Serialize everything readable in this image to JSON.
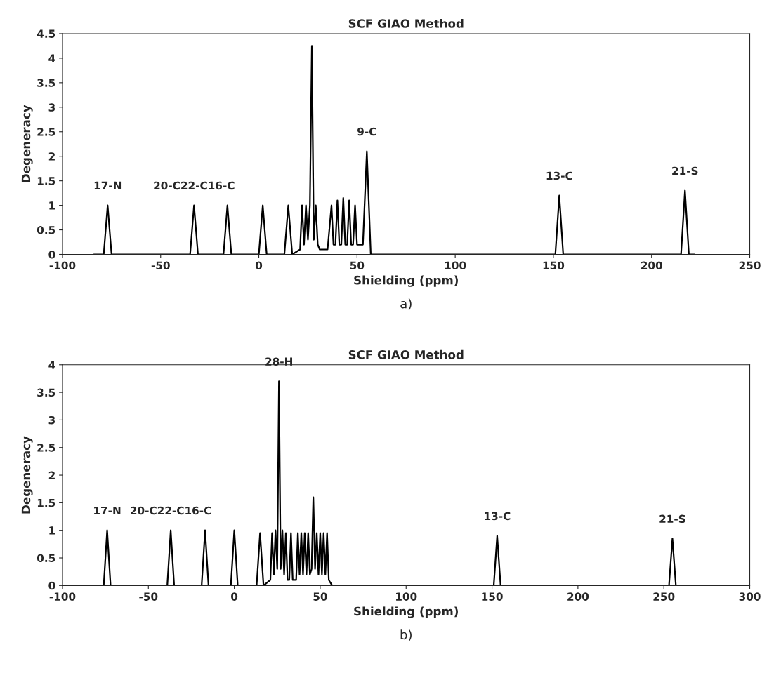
{
  "chart_data": [
    {
      "type": "line",
      "title": "SCF GIAO Method",
      "xlabel": "Shielding (ppm)",
      "ylabel": "Degeneracy",
      "xlim": [
        -100,
        250
      ],
      "xticks": [
        -100,
        -50,
        0,
        50,
        100,
        150,
        200,
        250
      ],
      "ylim": [
        0,
        4.5
      ],
      "yticks": [
        0,
        0.5,
        1,
        1.5,
        2,
        2.5,
        3,
        3.5,
        4,
        4.5
      ],
      "grid": false,
      "series": [
        {
          "color": "#000000",
          "x": [
            -84,
            -79,
            -77,
            -75,
            -35,
            -33,
            -31,
            -18,
            -16,
            -14,
            0,
            2,
            4,
            13,
            15,
            17,
            21,
            22,
            23,
            24,
            25,
            26,
            27,
            28,
            29,
            30,
            31,
            35,
            37,
            38,
            39,
            40,
            41,
            42,
            43,
            44,
            45,
            46,
            47,
            48,
            49,
            50,
            53,
            55,
            57,
            151,
            153,
            155,
            215,
            217,
            219,
            222
          ],
          "values": [
            0,
            0,
            1.0,
            0,
            0,
            1.0,
            0,
            0,
            1.0,
            0,
            0,
            1.0,
            0,
            0,
            1.0,
            0,
            0.1,
            1.0,
            0.2,
            1.0,
            0.3,
            1.0,
            4.25,
            0.3,
            1.0,
            0.2,
            0.1,
            0.1,
            1.0,
            0.2,
            0.2,
            1.1,
            0.2,
            0.2,
            1.15,
            0.2,
            0.2,
            1.1,
            0.2,
            0.2,
            1.0,
            0.2,
            0.2,
            2.1,
            0,
            0,
            1.2,
            0,
            0,
            1.3,
            0,
            0
          ]
        }
      ],
      "annotations": [
        {
          "text": "17-N",
          "x": -77,
          "y": 1.0
        },
        {
          "text": "20-C22-C16-C",
          "x": -33,
          "y": 1.0
        },
        {
          "text": "9-C",
          "x": 55,
          "y": 2.1
        },
        {
          "text": "13-C",
          "x": 153,
          "y": 1.2
        },
        {
          "text": "21-S",
          "x": 217,
          "y": 1.3
        },
        "a)"
      ]
    },
    {
      "type": "line",
      "title": "SCF GIAO Method",
      "xlabel": "Shielding (ppm)",
      "ylabel": "Degeneracy",
      "xlim": [
        -100,
        300
      ],
      "xticks": [
        -100,
        -50,
        0,
        50,
        100,
        150,
        200,
        250,
        300
      ],
      "ylim": [
        0,
        4
      ],
      "yticks": [
        0,
        0.5,
        1,
        1.5,
        2,
        2.5,
        3,
        3.5,
        4
      ],
      "grid": false,
      "series": [
        {
          "color": "#000000",
          "x": [
            -82,
            -76,
            -74,
            -72,
            -39,
            -37,
            -35,
            -19,
            -17,
            -15,
            -2,
            0,
            2,
            13,
            15,
            17,
            21,
            22,
            23,
            24,
            25,
            26,
            27,
            28,
            29,
            30,
            31,
            32,
            33,
            34,
            36,
            37,
            38,
            39,
            40,
            41,
            42,
            43,
            44,
            45,
            46,
            47,
            48,
            49,
            50,
            51,
            52,
            53,
            54,
            55,
            57,
            151,
            153,
            155,
            253,
            255,
            257,
            260
          ],
          "values": [
            0,
            0,
            1.0,
            0,
            0,
            1.0,
            0,
            0,
            1.0,
            0,
            0,
            1.0,
            0,
            0,
            0.95,
            0,
            0.1,
            0.95,
            0.2,
            1.0,
            0.3,
            3.7,
            0.3,
            1.0,
            0.2,
            0.95,
            0.1,
            0.1,
            0.95,
            0.1,
            0.1,
            0.95,
            0.2,
            0.95,
            0.2,
            0.95,
            0.2,
            0.95,
            0.2,
            0.3,
            1.6,
            0.3,
            0.95,
            0.2,
            0.95,
            0.2,
            0.95,
            0.2,
            0.95,
            0.1,
            0,
            0,
            0.9,
            0,
            0,
            0.85,
            0,
            0
          ]
        }
      ],
      "annotations": [
        {
          "text": "17-N",
          "x": -74,
          "y": 1.0
        },
        {
          "text": "20-C22-C16-C",
          "x": -37,
          "y": 1.0
        },
        {
          "text": "28-H",
          "x": 26,
          "y": 3.7
        },
        {
          "text": "13-C",
          "x": 153,
          "y": 0.9
        },
        {
          "text": "21-S",
          "x": 255,
          "y": 0.85
        },
        "b)"
      ]
    }
  ]
}
